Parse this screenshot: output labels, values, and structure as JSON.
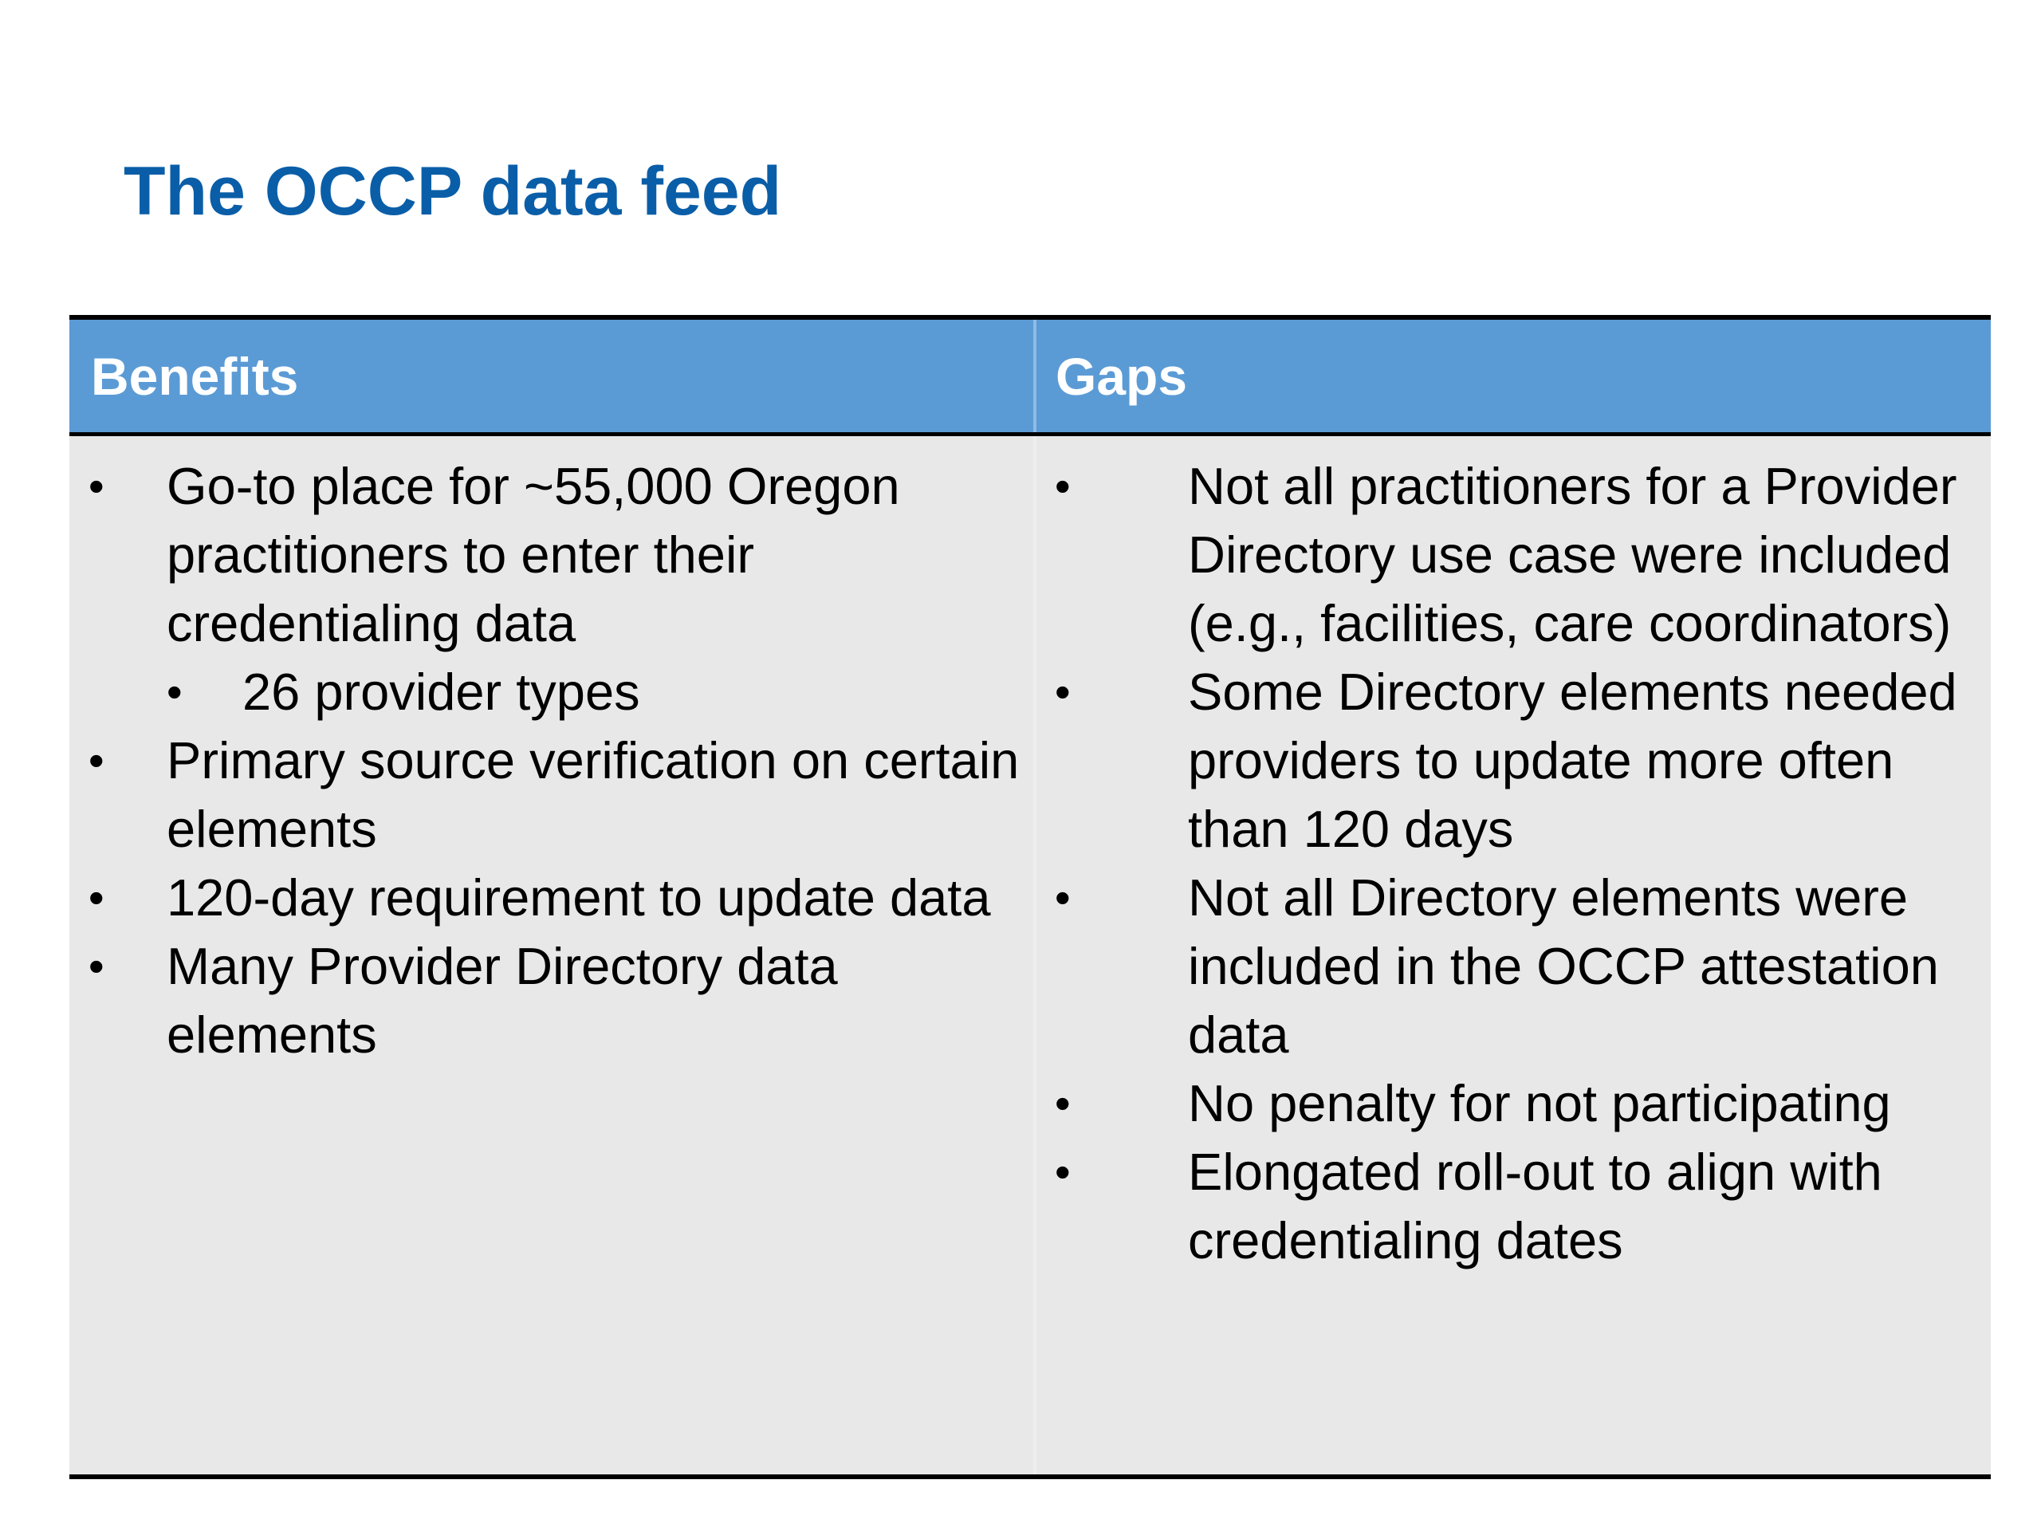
{
  "slide": {
    "title": "The OCCP data feed"
  },
  "table": {
    "headers": {
      "benefits": "Benefits",
      "gaps": "Gaps"
    },
    "benefits": [
      {
        "text": "Go-to place for ~55,000 Oregon practitioners to enter their credentialing data",
        "sub_items": [
          "26 provider types"
        ]
      },
      {
        "text": "Primary source verification on certain elements"
      },
      {
        "text": "120-day requirement to update data"
      },
      {
        "text": "Many Provider Directory data elements"
      }
    ],
    "gaps": [
      {
        "text": "Not all practitioners for a Provider Directory use case were included (e.g., facilities, care coordinators)"
      },
      {
        "text": "Some Directory elements needed providers to update more often than 120 days"
      },
      {
        "text": "Not all Directory elements were included in the OCCP attestation data"
      },
      {
        "text": "No penalty for not participating"
      },
      {
        "text": "Elongated roll-out to align with credentialing dates"
      }
    ]
  },
  "colors": {
    "title": "#0a5ea8",
    "header_background": "#5b9bd5",
    "body_background": "#e8e8e8"
  }
}
